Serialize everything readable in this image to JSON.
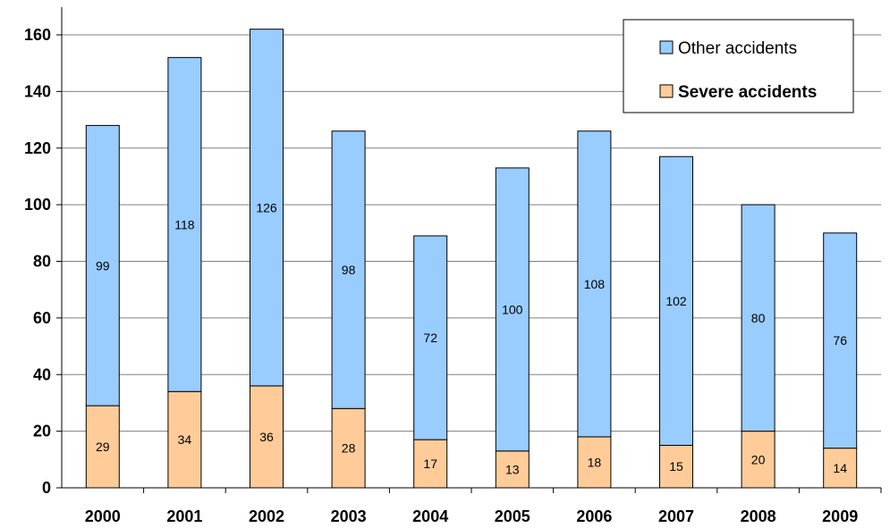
{
  "chart_data": {
    "type": "bar",
    "stacked": true,
    "title": "",
    "xlabel": "",
    "ylabel": "",
    "categories": [
      "2000",
      "2001",
      "2002",
      "2003",
      "2004",
      "2005",
      "2006",
      "2007",
      "2008",
      "2009"
    ],
    "series": [
      {
        "name": "Severe accidents",
        "values": [
          29,
          34,
          36,
          28,
          17,
          13,
          18,
          15,
          20,
          14
        ],
        "color": "#FFCC99"
      },
      {
        "name": "Other accidents",
        "values": [
          99,
          118,
          126,
          98,
          72,
          100,
          108,
          102,
          80,
          76
        ],
        "color": "#99CCFF"
      }
    ],
    "ylim": [
      0,
      160
    ],
    "yticks": [
      0,
      20,
      40,
      60,
      80,
      100,
      120,
      140,
      160
    ],
    "grid": true,
    "legend_position": "top-right",
    "data_labels": true
  }
}
